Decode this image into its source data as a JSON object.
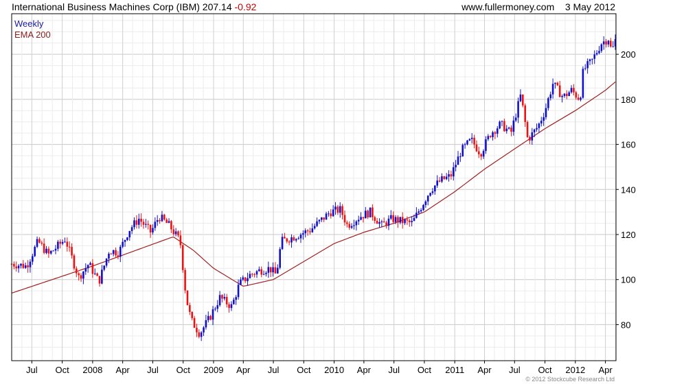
{
  "header": {
    "name": "International Business Machines Corp (IBM)",
    "price": "207.14",
    "change": "-0.92",
    "source": "www.fullermoney.com",
    "date": "3 May 2012"
  },
  "legend": {
    "series": "Weekly",
    "indicator": "EMA 200"
  },
  "copyright": "© 2012 Stockcube Research Ltd",
  "colors": {
    "up": "#1010cc",
    "down": "#ee1111",
    "ema": "#a02020",
    "grid": "#d4d4d4",
    "axis": "#000000"
  },
  "chart_data": {
    "type": "candlestick",
    "title": "International Business Machines Corp (IBM) 207.14 -0.92",
    "frequency": "Weekly",
    "x_range": [
      "2007-05-01",
      "2012-05-03"
    ],
    "ylim": [
      64,
      218
    ],
    "y_ticks": [
      80,
      100,
      120,
      140,
      160,
      180,
      200
    ],
    "y_axis_side": "right",
    "grid": true,
    "legend_position": "top-left",
    "x_ticks": [
      {
        "label": "Jul",
        "date": "2007-07-01"
      },
      {
        "label": "Oct",
        "date": "2007-10-01"
      },
      {
        "label": "2008",
        "date": "2008-01-01"
      },
      {
        "label": "Apr",
        "date": "2008-04-01"
      },
      {
        "label": "Jul",
        "date": "2008-07-01"
      },
      {
        "label": "Oct",
        "date": "2008-10-01"
      },
      {
        "label": "2009",
        "date": "2009-01-01"
      },
      {
        "label": "Apr",
        "date": "2009-04-01"
      },
      {
        "label": "Jul",
        "date": "2009-07-01"
      },
      {
        "label": "Oct",
        "date": "2009-10-01"
      },
      {
        "label": "2010",
        "date": "2010-01-01"
      },
      {
        "label": "Apr",
        "date": "2010-04-01"
      },
      {
        "label": "Jul",
        "date": "2010-07-01"
      },
      {
        "label": "Oct",
        "date": "2010-10-01"
      },
      {
        "label": "2011",
        "date": "2011-01-01"
      },
      {
        "label": "Apr",
        "date": "2011-04-01"
      },
      {
        "label": "Jul",
        "date": "2011-07-01"
      },
      {
        "label": "Oct",
        "date": "2011-10-01"
      },
      {
        "label": "2012",
        "date": "2012-01-01"
      },
      {
        "label": "Apr",
        "date": "2012-04-01"
      }
    ],
    "price_keypoints": [
      [
        "2007-05-01",
        107
      ],
      [
        "2007-06-15",
        106
      ],
      [
        "2007-07-20",
        117
      ],
      [
        "2007-08-20",
        111
      ],
      [
        "2007-10-10",
        118
      ],
      [
        "2007-11-20",
        101
      ],
      [
        "2007-12-20",
        107
      ],
      [
        "2008-01-20",
        99
      ],
      [
        "2008-02-20",
        113
      ],
      [
        "2008-03-20",
        112
      ],
      [
        "2008-04-20",
        122
      ],
      [
        "2008-05-20",
        127
      ],
      [
        "2008-06-25",
        121
      ],
      [
        "2008-07-20",
        128
      ],
      [
        "2008-08-20",
        124
      ],
      [
        "2008-09-22",
        117
      ],
      [
        "2008-10-10",
        92
      ],
      [
        "2008-10-25",
        82
      ],
      [
        "2008-11-20",
        76
      ],
      [
        "2008-12-20",
        83
      ],
      [
        "2009-01-20",
        92
      ],
      [
        "2009-02-25",
        88
      ],
      [
        "2009-03-20",
        98
      ],
      [
        "2009-04-20",
        102
      ],
      [
        "2009-05-20",
        104
      ],
      [
        "2009-06-20",
        105
      ],
      [
        "2009-07-10",
        102
      ],
      [
        "2009-07-25",
        117
      ],
      [
        "2009-09-01",
        119
      ],
      [
        "2009-10-20",
        122
      ],
      [
        "2009-11-20",
        126
      ],
      [
        "2009-12-20",
        130
      ],
      [
        "2010-01-20",
        131
      ],
      [
        "2010-02-10",
        124
      ],
      [
        "2010-03-20",
        128
      ],
      [
        "2010-04-20",
        130
      ],
      [
        "2010-05-25",
        124
      ],
      [
        "2010-06-25",
        127
      ],
      [
        "2010-07-20",
        126
      ],
      [
        "2010-08-25",
        125
      ],
      [
        "2010-09-20",
        132
      ],
      [
        "2010-10-20",
        140
      ],
      [
        "2010-11-20",
        144
      ],
      [
        "2010-12-20",
        146
      ],
      [
        "2011-01-20",
        157
      ],
      [
        "2011-02-20",
        162
      ],
      [
        "2011-03-20",
        156
      ],
      [
        "2011-04-20",
        165
      ],
      [
        "2011-05-20",
        169
      ],
      [
        "2011-06-20",
        165
      ],
      [
        "2011-07-20",
        182
      ],
      [
        "2011-08-10",
        162
      ],
      [
        "2011-09-10",
        168
      ],
      [
        "2011-10-01",
        175
      ],
      [
        "2011-10-25",
        187
      ],
      [
        "2011-11-25",
        181
      ],
      [
        "2011-12-20",
        184
      ],
      [
        "2012-01-15",
        180
      ],
      [
        "2012-01-25",
        193
      ],
      [
        "2012-02-20",
        197
      ],
      [
        "2012-03-20",
        205
      ],
      [
        "2012-04-10",
        207
      ],
      [
        "2012-04-20",
        201
      ],
      [
        "2012-05-03",
        207.14
      ]
    ],
    "ema_keypoints": [
      [
        "2007-05-01",
        94
      ],
      [
        "2008-01-01",
        106
      ],
      [
        "2008-09-01",
        119
      ],
      [
        "2008-11-01",
        113
      ],
      [
        "2009-01-01",
        105
      ],
      [
        "2009-04-01",
        97
      ],
      [
        "2009-07-01",
        100
      ],
      [
        "2009-10-01",
        108
      ],
      [
        "2010-01-01",
        116
      ],
      [
        "2010-04-01",
        121
      ],
      [
        "2010-07-01",
        125
      ],
      [
        "2010-10-01",
        130
      ],
      [
        "2011-01-01",
        139
      ],
      [
        "2011-04-01",
        149
      ],
      [
        "2011-07-01",
        158
      ],
      [
        "2011-10-01",
        167
      ],
      [
        "2012-01-01",
        175
      ],
      [
        "2012-04-01",
        184
      ],
      [
        "2012-05-03",
        188
      ]
    ]
  }
}
